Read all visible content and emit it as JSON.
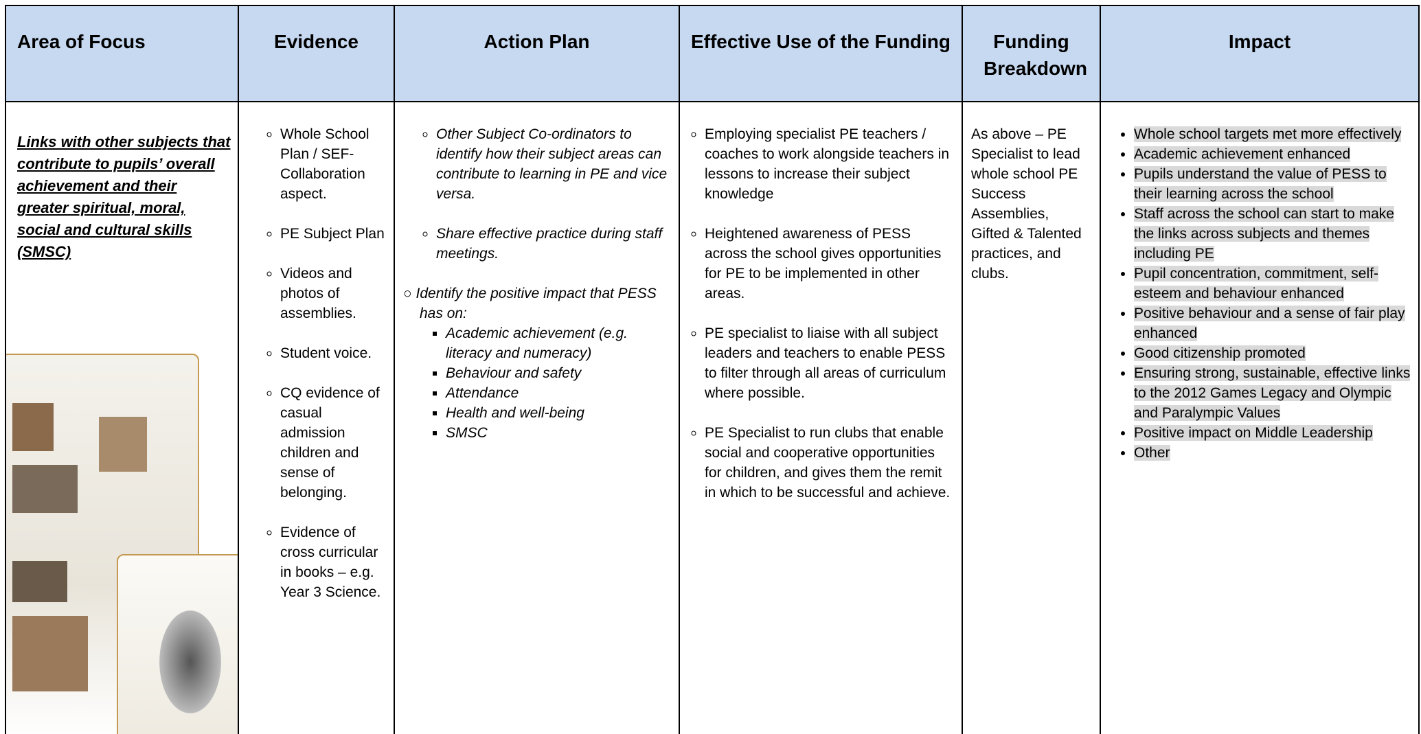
{
  "header": {
    "columns": [
      "Area of Focus",
      "Evidence",
      "Action Plan",
      "Effective Use of the Funding",
      "Funding Breakdown",
      "Impact"
    ]
  },
  "row": {
    "area_of_focus": "Links with other subjects that contribute to pupils’ overall achievement and their greater spiritual, moral, social and cultural skills (SMSC)",
    "evidence": [
      "Whole School Plan / SEF- Collaboration aspect.",
      "PE Subject Plan",
      "Videos and photos of assemblies.",
      "Student voice.",
      "CQ evidence of casual admission children and sense of belonging.",
      "Evidence of cross curricular in books – e.g. Year 3 Science."
    ],
    "action_plan": {
      "items": [
        "Other Subject Co-ordinators to identify how their subject areas can contribute to learning in PE and vice versa.",
        "Share effective practice during staff meetings."
      ],
      "impact_intro": "Identify the positive impact that PESS has on:",
      "impact_areas": [
        "Academic achievement (e.g. literacy and numeracy)",
        "Behaviour and safety",
        "Attendance",
        "Health and well-being",
        "SMSC"
      ]
    },
    "effective_use": [
      "Employing specialist PE teachers / coaches to work alongside teachers in lessons to increase their subject knowledge",
      "Heightened awareness of PESS across the school gives opportunities for PE to be implemented in other areas.",
      "PE specialist to liaise with all subject leaders and teachers to enable PESS to filter through all areas of curriculum where possible.",
      "PE Specialist to run clubs that enable social and cooperative opportunities for children, and gives them the remit in which to be successful and achieve."
    ],
    "funding_breakdown": "As above – PE Specialist to lead whole school PE Success Assemblies, Gifted & Talented practices, and clubs.",
    "impact": [
      "Whole school targets met more effectively",
      "Academic achievement enhanced",
      "Pupils understand the value of PESS to their learning across the school",
      "Staff across  the school can start to make the links across subjects and themes including PE",
      "Pupil concentration, commitment, self-esteem and behaviour enhanced",
      "Positive behaviour and a sense of fair play enhanced",
      "Good citizenship promoted",
      "Ensuring strong, sustainable, effective links to the 2012 Games Legacy and Olympic and Paralympic Values",
      "Positive impact on Middle Leadership",
      "Other"
    ]
  }
}
